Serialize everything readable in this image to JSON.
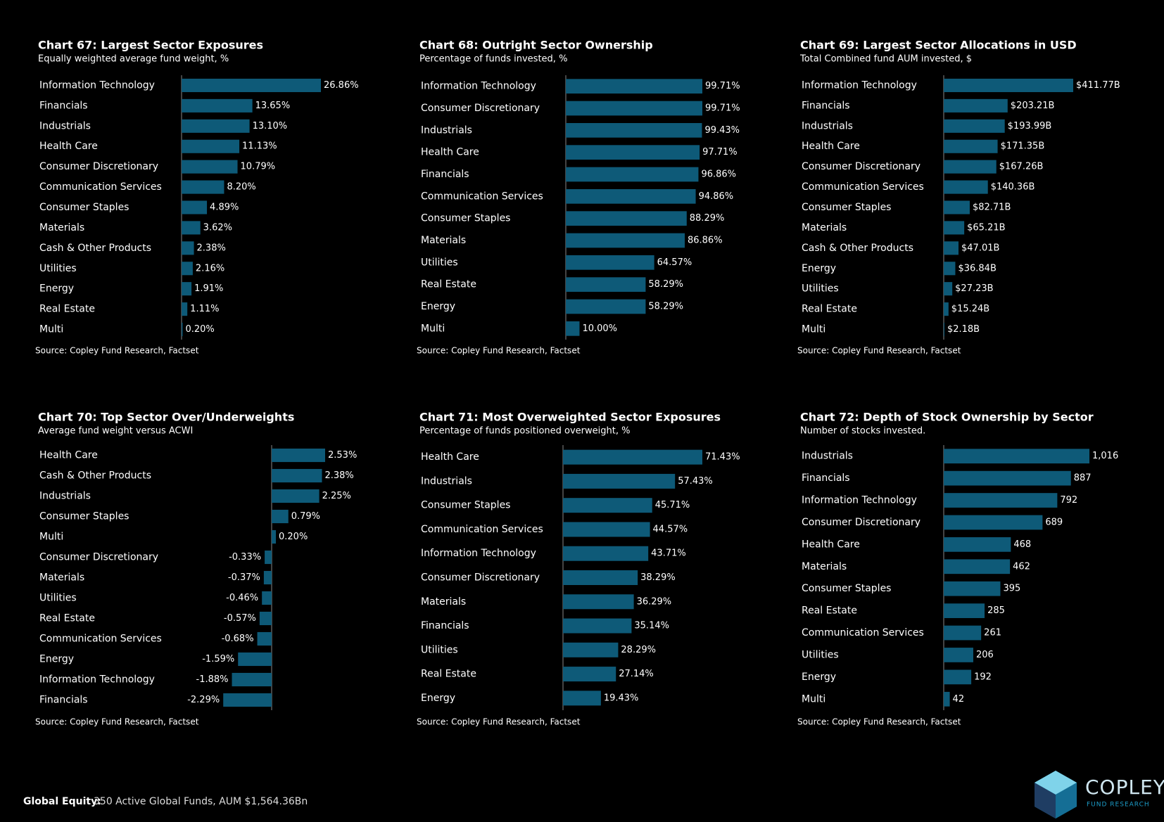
{
  "chart_data": [
    {
      "type": "bar",
      "title": "Chart 67:  Largest Sector Exposures",
      "subtitle": "Equally weighted average fund weight, %",
      "color": "#0e5a78",
      "categories": [
        "Information Technology",
        "Financials",
        "Industrials",
        "Health Care",
        "Consumer Discretionary",
        "Communication Services",
        "Consumer Staples",
        "Materials",
        "Cash & Other Products",
        "Utilities",
        "Energy",
        "Real Estate",
        "Multi"
      ],
      "values": [
        26.86,
        13.65,
        13.1,
        11.13,
        10.79,
        8.2,
        4.89,
        3.62,
        2.38,
        2.16,
        1.91,
        1.11,
        0.2
      ],
      "value_labels": [
        "26.86%",
        "13.65%",
        "13.10%",
        "11.13%",
        "10.79%",
        "8.20%",
        "4.89%",
        "3.62%",
        "2.38%",
        "2.16%",
        "1.91%",
        "1.11%",
        "0.20%"
      ],
      "source": "Source:  Copley Fund Research, Factset"
    },
    {
      "type": "bar",
      "title": "Chart 68:  Outright Sector Ownership",
      "subtitle": "Percentage of funds invested, %",
      "color": "#0e5a78",
      "categories": [
        "Information Technology",
        "Consumer Discretionary",
        "Industrials",
        "Health Care",
        "Financials",
        "Communication Services",
        "Consumer Staples",
        "Materials",
        "Utilities",
        "Real Estate",
        "Energy",
        "Multi"
      ],
      "values": [
        99.71,
        99.71,
        99.43,
        97.71,
        96.86,
        94.86,
        88.29,
        86.86,
        64.57,
        58.29,
        58.29,
        10.0
      ],
      "value_labels": [
        "99.71%",
        "99.71%",
        "99.43%",
        "97.71%",
        "96.86%",
        "94.86%",
        "88.29%",
        "86.86%",
        "64.57%",
        "58.29%",
        "58.29%",
        "10.00%"
      ],
      "source": "Source:  Copley Fund Research, Factset"
    },
    {
      "type": "bar",
      "title": "Chart 69:  Largest Sector Allocations in USD",
      "subtitle": "Total Combined fund AUM invested, $",
      "color": "#0e5a78",
      "categories": [
        "Information Technology",
        "Financials",
        "Industrials",
        "Health Care",
        "Consumer Discretionary",
        "Communication Services",
        "Consumer Staples",
        "Materials",
        "Cash & Other Products",
        "Energy",
        "Utilities",
        "Real Estate",
        "Multi"
      ],
      "values": [
        411.77,
        203.21,
        193.99,
        171.35,
        167.26,
        140.36,
        82.71,
        65.21,
        47.01,
        36.84,
        27.23,
        15.24,
        2.18
      ],
      "value_labels": [
        "$411.77B",
        "$203.21B",
        "$193.99B",
        "$171.35B",
        "$167.26B",
        "$140.36B",
        "$82.71B",
        "$65.21B",
        "$47.01B",
        "$36.84B",
        "$27.23B",
        "$15.24B",
        "$2.18B"
      ],
      "source": "Source:  Copley Fund Research, Factset"
    },
    {
      "type": "bar",
      "title": "Chart 70: Top Sector Over/Underweights",
      "subtitle": "Average fund weight versus ACWI",
      "color": "#0e5a78",
      "categories": [
        "Health Care",
        "Cash & Other Products",
        "Industrials",
        "Consumer Staples",
        "Multi",
        "Consumer Discretionary",
        "Materials",
        "Utilities",
        "Real Estate",
        "Communication Services",
        "Energy",
        "Information Technology",
        "Financials"
      ],
      "values": [
        2.53,
        2.38,
        2.25,
        0.79,
        0.2,
        -0.33,
        -0.37,
        -0.46,
        -0.57,
        -0.68,
        -1.59,
        -1.88,
        -2.29
      ],
      "value_labels": [
        "2.53%",
        "2.38%",
        "2.25%",
        "0.79%",
        "0.20%",
        "-0.33%",
        "-0.37%",
        "-0.46%",
        "-0.57%",
        "-0.68%",
        "-1.59%",
        "-1.88%",
        "-2.29%"
      ],
      "source": "Source:  Copley Fund Research, Factset"
    },
    {
      "type": "bar",
      "title": "Chart 71:  Most Overweighted Sector Exposures",
      "subtitle": "Percentage of funds positioned overweight, %",
      "color": "#0e5a78",
      "categories": [
        "Health Care",
        "Industrials",
        "Consumer Staples",
        "Communication Services",
        "Information Technology",
        "Consumer Discretionary",
        "Materials",
        "Financials",
        "Utilities",
        "Real Estate",
        "Energy"
      ],
      "values": [
        71.43,
        57.43,
        45.71,
        44.57,
        43.71,
        38.29,
        36.29,
        35.14,
        28.29,
        27.14,
        19.43
      ],
      "value_labels": [
        "71.43%",
        "57.43%",
        "45.71%",
        "44.57%",
        "43.71%",
        "38.29%",
        "36.29%",
        "35.14%",
        "28.29%",
        "27.14%",
        "19.43%"
      ],
      "source": "Source:  Copley Fund Research, Factset"
    },
    {
      "type": "bar",
      "title": "Chart 72:  Depth of Stock Ownership by Sector",
      "subtitle": "Number of stocks invested.",
      "color": "#0e5a78",
      "categories": [
        "Industrials",
        "Financials",
        "Information Technology",
        "Consumer Discretionary",
        "Health Care",
        "Materials",
        "Consumer Staples",
        "Real Estate",
        "Communication Services",
        "Utilities",
        "Energy",
        "Multi"
      ],
      "values": [
        1016,
        887,
        792,
        689,
        468,
        462,
        395,
        285,
        261,
        206,
        192,
        42
      ],
      "value_labels": [
        "1,016",
        "887",
        "792",
        "689",
        "468",
        "462",
        "395",
        "285",
        "261",
        "206",
        "192",
        "42"
      ],
      "source": "Source:  Copley Fund Research, Factset"
    }
  ],
  "footer": {
    "label": "Global Equity:",
    "text": "350 Active Global Funds, AUM $1,564.36Bn"
  },
  "logo": {
    "name": "COPLEY",
    "tagline": "FUND RESEARCH"
  }
}
